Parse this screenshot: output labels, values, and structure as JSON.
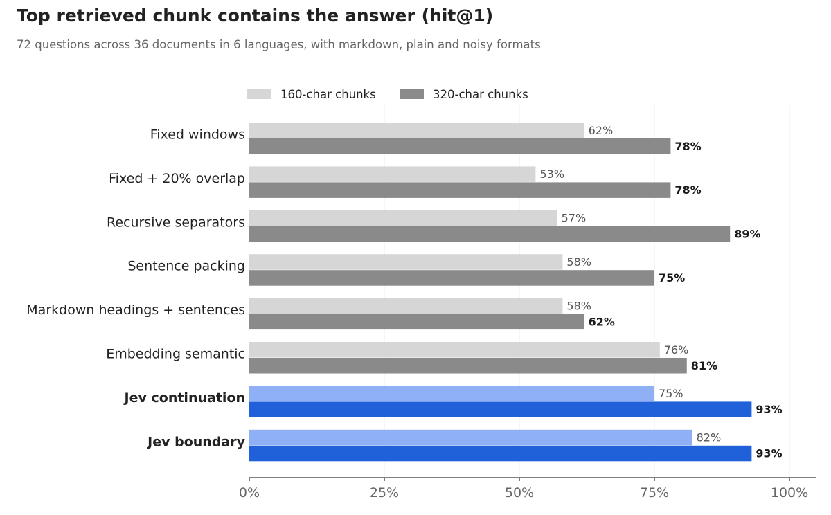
{
  "title": "Top retrieved chunk contains the answer (hit@1)",
  "subtitle": "72 questions across 36 documents in 6 languages, with markdown, plain and noisy formats",
  "chart_data": {
    "type": "bar",
    "orientation": "horizontal",
    "title": "Top retrieved chunk contains the answer (hit@1)",
    "subtitle": "72 questions across 36 documents in 6 languages, with markdown, plain and noisy formats",
    "categories": [
      "Fixed windows",
      "Fixed + 20% overlap",
      "Recursive separators",
      "Sentence packing",
      "Markdown headings + sentences",
      "Embedding semantic",
      "Jev continuation",
      "Jev boundary"
    ],
    "highlighted_categories": [
      "Jev continuation",
      "Jev boundary"
    ],
    "series": [
      {
        "name": "160-char chunks",
        "values": [
          62,
          53,
          57,
          58,
          58,
          76,
          75,
          82
        ],
        "color": "#d6d6d6",
        "highlight_color": "#8fb0f5"
      },
      {
        "name": "320-char chunks",
        "values": [
          78,
          78,
          89,
          75,
          62,
          81,
          93,
          93
        ],
        "color": "#8a8a8a",
        "highlight_color": "#2060d8"
      }
    ],
    "value_suffix": "%",
    "xlim": [
      0,
      100
    ],
    "xticks": [
      0,
      25,
      50,
      75,
      100
    ],
    "xtick_labels": [
      "0%",
      "25%",
      "50%",
      "75%",
      "100%"
    ],
    "grid": "vertical",
    "legend": "top-center"
  }
}
